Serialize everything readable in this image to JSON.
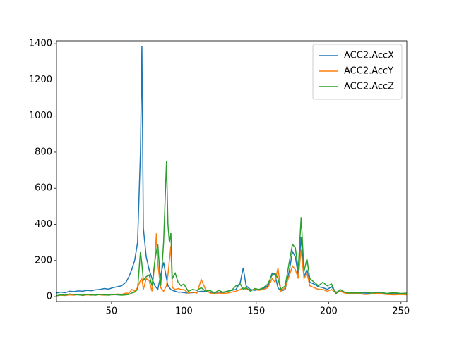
{
  "chart_data": {
    "type": "line",
    "x": [
      12,
      15,
      18,
      21,
      24,
      27,
      30,
      33,
      36,
      39,
      42,
      45,
      48,
      51,
      54,
      57,
      60,
      62,
      64,
      66,
      68,
      70,
      71,
      72,
      74,
      76,
      78,
      80,
      81,
      82,
      84,
      86,
      88,
      89,
      90,
      91,
      92,
      94,
      96,
      98,
      100,
      103,
      106,
      109,
      112,
      115,
      118,
      121,
      124,
      127,
      130,
      133,
      136,
      139,
      141,
      143,
      146,
      149,
      152,
      155,
      158,
      161,
      163,
      165,
      167,
      170,
      173,
      175,
      177,
      179,
      181,
      183,
      185,
      187,
      190,
      193,
      196,
      199,
      202,
      205,
      208,
      211,
      214,
      217,
      220,
      225,
      230,
      235,
      240,
      245,
      250,
      254
    ],
    "series": [
      {
        "name": "ACC2.AccX",
        "color": "#1f77b4",
        "values": [
          20,
          25,
          22,
          30,
          28,
          32,
          30,
          35,
          33,
          38,
          40,
          45,
          42,
          50,
          55,
          60,
          80,
          110,
          150,
          200,
          300,
          800,
          1385,
          380,
          220,
          150,
          100,
          60,
          50,
          40,
          120,
          190,
          100,
          60,
          50,
          40,
          35,
          30,
          25,
          25,
          22,
          20,
          22,
          25,
          30,
          28,
          25,
          22,
          25,
          22,
          30,
          35,
          40,
          80,
          160,
          60,
          40,
          35,
          40,
          45,
          60,
          130,
          120,
          50,
          30,
          40,
          150,
          250,
          220,
          120,
          330,
          110,
          150,
          80,
          70,
          55,
          50,
          40,
          55,
          25,
          30,
          25,
          20,
          18,
          20,
          20,
          18,
          22,
          15,
          20,
          15,
          12
        ]
      },
      {
        "name": "ACC2.AccY",
        "color": "#ff7f0e",
        "values": [
          5,
          8,
          6,
          10,
          8,
          12,
          6,
          10,
          8,
          12,
          10,
          8,
          12,
          10,
          15,
          12,
          20,
          18,
          40,
          30,
          50,
          90,
          100,
          40,
          100,
          90,
          30,
          200,
          350,
          180,
          50,
          30,
          60,
          120,
          200,
          280,
          50,
          40,
          45,
          40,
          40,
          20,
          25,
          20,
          95,
          40,
          20,
          15,
          20,
          18,
          20,
          25,
          30,
          40,
          50,
          40,
          35,
          40,
          35,
          40,
          50,
          100,
          80,
          160,
          30,
          50,
          120,
          170,
          150,
          100,
          260,
          100,
          130,
          60,
          50,
          40,
          40,
          30,
          40,
          20,
          30,
          20,
          15,
          15,
          18,
          12,
          15,
          18,
          12,
          10,
          12,
          10
        ]
      },
      {
        "name": "ACC2.AccZ",
        "color": "#2ca02c",
        "values": [
          5,
          10,
          8,
          15,
          12,
          10,
          8,
          12,
          10,
          8,
          12,
          10,
          8,
          12,
          10,
          8,
          10,
          12,
          20,
          25,
          40,
          250,
          180,
          90,
          110,
          120,
          60,
          200,
          250,
          290,
          60,
          300,
          750,
          400,
          300,
          355,
          100,
          130,
          80,
          60,
          70,
          30,
          40,
          35,
          50,
          30,
          35,
          20,
          35,
          25,
          30,
          35,
          60,
          70,
          40,
          50,
          30,
          45,
          40,
          50,
          70,
          120,
          130,
          100,
          40,
          60,
          200,
          290,
          270,
          150,
          440,
          140,
          210,
          100,
          80,
          60,
          80,
          60,
          70,
          15,
          40,
          25,
          20,
          22,
          20,
          25,
          20,
          25,
          18,
          22,
          18,
          20
        ]
      }
    ],
    "xlim": [
      12,
      254
    ],
    "ylim": [
      -27,
      1416
    ],
    "xticks": [
      50,
      100,
      150,
      200,
      250
    ],
    "yticks": [
      0,
      200,
      400,
      600,
      800,
      1000,
      1200,
      1400
    ],
    "legend": "upper right"
  }
}
